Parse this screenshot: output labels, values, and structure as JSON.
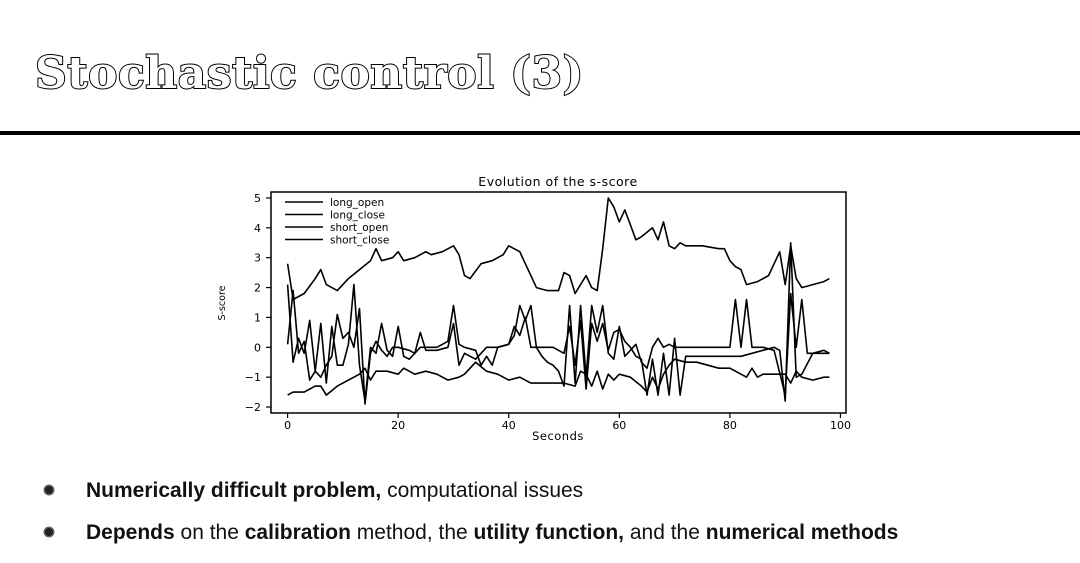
{
  "slide": {
    "title": "Stochastic control (3)"
  },
  "bullets": [
    {
      "parts": [
        {
          "text": "Numerically difficult problem,",
          "bold": true
        },
        {
          "text": " computational issues",
          "bold": false
        }
      ]
    },
    {
      "parts": [
        {
          "text": "Depends",
          "bold": true
        },
        {
          "text": " on the ",
          "bold": false
        },
        {
          "text": "calibration",
          "bold": true
        },
        {
          "text": " method, the ",
          "bold": false
        },
        {
          "text": "utility function,",
          "bold": true
        },
        {
          "text": " and the ",
          "bold": false
        },
        {
          "text": "numerical methods",
          "bold": true
        }
      ]
    }
  ],
  "chart_data": {
    "type": "line",
    "title": "Evolution of the s-score",
    "xlabel": "Seconds",
    "ylabel": "S-score",
    "xlim": [
      -3,
      101
    ],
    "ylim": [
      -2.2,
      5.2
    ],
    "xticks": [
      0,
      20,
      40,
      60,
      80,
      100
    ],
    "yticks": [
      -2,
      -1,
      0,
      1,
      2,
      3,
      4,
      5
    ],
    "grid": false,
    "legend_position": "top-left",
    "line_color": "#000000",
    "series": [
      {
        "name": "long_open",
        "points": [
          [
            0,
            2.8
          ],
          [
            1,
            1.6
          ],
          [
            3,
            1.8
          ],
          [
            5,
            2.3
          ],
          [
            6,
            2.6
          ],
          [
            7,
            2.1
          ],
          [
            9,
            1.9
          ],
          [
            11,
            2.3
          ],
          [
            13,
            2.6
          ],
          [
            15,
            2.9
          ],
          [
            16,
            3.3
          ],
          [
            17,
            2.9
          ],
          [
            19,
            3.0
          ],
          [
            20,
            3.2
          ],
          [
            21,
            2.9
          ],
          [
            23,
            3.0
          ],
          [
            25,
            3.2
          ],
          [
            26,
            3.1
          ],
          [
            28,
            3.2
          ],
          [
            30,
            3.4
          ],
          [
            31,
            3.1
          ],
          [
            32,
            2.4
          ],
          [
            33,
            2.3
          ],
          [
            35,
            2.8
          ],
          [
            37,
            2.9
          ],
          [
            39,
            3.1
          ],
          [
            40,
            3.4
          ],
          [
            42,
            3.2
          ],
          [
            43,
            2.8
          ],
          [
            44,
            2.4
          ],
          [
            45,
            2.0
          ],
          [
            47,
            1.9
          ],
          [
            49,
            1.9
          ],
          [
            50,
            2.5
          ],
          [
            51,
            2.4
          ],
          [
            52,
            1.8
          ],
          [
            54,
            2.4
          ],
          [
            55,
            2.0
          ],
          [
            56,
            1.9
          ],
          [
            57,
            3.3
          ],
          [
            58,
            5.0
          ],
          [
            59,
            4.7
          ],
          [
            60,
            4.2
          ],
          [
            61,
            4.6
          ],
          [
            62,
            4.1
          ],
          [
            63,
            3.6
          ],
          [
            64,
            3.7
          ],
          [
            66,
            4.0
          ],
          [
            67,
            3.6
          ],
          [
            68,
            4.2
          ],
          [
            69,
            3.4
          ],
          [
            70,
            3.3
          ],
          [
            71,
            3.5
          ],
          [
            72,
            3.4
          ],
          [
            75,
            3.4
          ],
          [
            78,
            3.3
          ],
          [
            79,
            3.3
          ],
          [
            80,
            2.9
          ],
          [
            81,
            2.7
          ],
          [
            82,
            2.6
          ],
          [
            83,
            2.1
          ],
          [
            85,
            2.2
          ],
          [
            87,
            2.4
          ],
          [
            89,
            3.2
          ],
          [
            90,
            2.1
          ],
          [
            91,
            3.4
          ],
          [
            92,
            2.3
          ],
          [
            93,
            2.0
          ],
          [
            95,
            2.1
          ],
          [
            97,
            2.2
          ],
          [
            98,
            2.3
          ]
        ]
      },
      {
        "name": "long_close",
        "points": [
          [
            0,
            0.1
          ],
          [
            1,
            1.9
          ],
          [
            2,
            -0.2
          ],
          [
            3,
            0.2
          ],
          [
            4,
            -1.1
          ],
          [
            5,
            -0.8
          ],
          [
            6,
            0.8
          ],
          [
            7,
            -1.2
          ],
          [
            8,
            0.7
          ],
          [
            9,
            -0.6
          ],
          [
            10,
            -0.6
          ],
          [
            11,
            0.1
          ],
          [
            12,
            2.1
          ],
          [
            13,
            -0.6
          ],
          [
            14,
            -1.8
          ],
          [
            15,
            0.0
          ],
          [
            16,
            -0.2
          ],
          [
            17,
            0.8
          ],
          [
            18,
            -0.1
          ],
          [
            19,
            -0.3
          ],
          [
            20,
            0.7
          ],
          [
            21,
            -0.3
          ],
          [
            22,
            -0.4
          ],
          [
            23,
            -0.2
          ],
          [
            24,
            0.0
          ],
          [
            25,
            0.0
          ],
          [
            27,
            0.0
          ],
          [
            28,
            0.1
          ],
          [
            29,
            0.2
          ],
          [
            30,
            1.4
          ],
          [
            31,
            0.1
          ],
          [
            32,
            0.0
          ],
          [
            34,
            -0.1
          ],
          [
            35,
            -0.6
          ],
          [
            36,
            -0.3
          ],
          [
            37,
            -0.6
          ],
          [
            38,
            0.0
          ],
          [
            40,
            0.1
          ],
          [
            41,
            0.4
          ],
          [
            42,
            1.4
          ],
          [
            43,
            0.9
          ],
          [
            44,
            1.4
          ],
          [
            45,
            0.0
          ],
          [
            46,
            -0.3
          ],
          [
            47,
            -0.5
          ],
          [
            48,
            -0.6
          ],
          [
            49,
            -0.8
          ],
          [
            50,
            -1.3
          ],
          [
            51,
            1.4
          ],
          [
            52,
            -1.2
          ],
          [
            53,
            1.4
          ],
          [
            54,
            -1.0
          ],
          [
            55,
            1.4
          ],
          [
            56,
            0.5
          ],
          [
            57,
            1.4
          ],
          [
            58,
            -0.2
          ],
          [
            59,
            -0.4
          ],
          [
            60,
            0.7
          ],
          [
            61,
            -0.3
          ],
          [
            62,
            -0.1
          ],
          [
            63,
            0.1
          ],
          [
            64,
            -0.5
          ],
          [
            65,
            -0.7
          ],
          [
            66,
            0.0
          ],
          [
            67,
            0.3
          ],
          [
            68,
            0.0
          ],
          [
            69,
            0.1
          ],
          [
            70,
            0.0
          ],
          [
            72,
            0.0
          ],
          [
            74,
            0.0
          ],
          [
            77,
            0.0
          ],
          [
            80,
            0.0
          ],
          [
            81,
            1.6
          ],
          [
            82,
            0.0
          ],
          [
            83,
            1.6
          ],
          [
            84,
            0.0
          ],
          [
            86,
            0.0
          ],
          [
            88,
            -0.1
          ],
          [
            90,
            -1.6
          ],
          [
            91,
            1.8
          ],
          [
            92,
            0.0
          ],
          [
            93,
            1.6
          ],
          [
            94,
            -0.2
          ],
          [
            96,
            -0.2
          ],
          [
            98,
            -0.2
          ]
        ]
      },
      {
        "name": "short_open",
        "points": [
          [
            0,
            -1.6
          ],
          [
            1,
            -1.5
          ],
          [
            3,
            -1.5
          ],
          [
            5,
            -1.3
          ],
          [
            6,
            -1.3
          ],
          [
            7,
            -1.6
          ],
          [
            9,
            -1.3
          ],
          [
            11,
            -1.1
          ],
          [
            13,
            -0.9
          ],
          [
            14,
            -0.7
          ],
          [
            15,
            -1.1
          ],
          [
            16,
            -0.8
          ],
          [
            18,
            -0.8
          ],
          [
            20,
            -0.9
          ],
          [
            21,
            -0.7
          ],
          [
            23,
            -0.9
          ],
          [
            25,
            -0.8
          ],
          [
            27,
            -0.9
          ],
          [
            29,
            -1.1
          ],
          [
            31,
            -1.0
          ],
          [
            32,
            -0.9
          ],
          [
            34,
            -0.5
          ],
          [
            36,
            -0.8
          ],
          [
            38,
            -0.9
          ],
          [
            40,
            -1.1
          ],
          [
            42,
            -1.0
          ],
          [
            44,
            -1.2
          ],
          [
            46,
            -1.2
          ],
          [
            48,
            -1.2
          ],
          [
            50,
            -1.2
          ],
          [
            52,
            -1.3
          ],
          [
            53,
            -0.8
          ],
          [
            54,
            -0.9
          ],
          [
            55,
            -1.3
          ],
          [
            56,
            -0.8
          ],
          [
            57,
            -1.4
          ],
          [
            58,
            -0.9
          ],
          [
            59,
            -1.1
          ],
          [
            60,
            -0.9
          ],
          [
            62,
            -1.0
          ],
          [
            64,
            -1.3
          ],
          [
            65,
            -1.5
          ],
          [
            66,
            -1.0
          ],
          [
            67,
            -1.4
          ],
          [
            68,
            -0.9
          ],
          [
            69,
            -0.6
          ],
          [
            70,
            -0.4
          ],
          [
            72,
            -0.5
          ],
          [
            74,
            -0.5
          ],
          [
            76,
            -0.6
          ],
          [
            78,
            -0.7
          ],
          [
            80,
            -0.7
          ],
          [
            82,
            -0.9
          ],
          [
            83,
            -1.0
          ],
          [
            84,
            -0.7
          ],
          [
            85,
            -1.0
          ],
          [
            86,
            -0.9
          ],
          [
            88,
            -0.9
          ],
          [
            90,
            -0.9
          ],
          [
            91,
            -1.2
          ],
          [
            92,
            -0.8
          ],
          [
            93,
            -1.0
          ],
          [
            95,
            -1.1
          ],
          [
            97,
            -1.0
          ],
          [
            98,
            -1.0
          ]
        ]
      },
      {
        "name": "short_close",
        "points": [
          [
            0,
            2.1
          ],
          [
            1,
            -0.5
          ],
          [
            2,
            0.3
          ],
          [
            3,
            -0.2
          ],
          [
            4,
            0.9
          ],
          [
            5,
            -0.8
          ],
          [
            6,
            -1.0
          ],
          [
            7,
            -0.6
          ],
          [
            8,
            -0.3
          ],
          [
            9,
            1.1
          ],
          [
            10,
            0.3
          ],
          [
            11,
            0.5
          ],
          [
            12,
            0.0
          ],
          [
            13,
            1.3
          ],
          [
            14,
            -1.9
          ],
          [
            15,
            -0.2
          ],
          [
            16,
            0.2
          ],
          [
            17,
            -0.1
          ],
          [
            18,
            -0.3
          ],
          [
            19,
            0.0
          ],
          [
            20,
            0.0
          ],
          [
            22,
            -0.1
          ],
          [
            23,
            -0.2
          ],
          [
            24,
            0.5
          ],
          [
            25,
            -0.1
          ],
          [
            27,
            -0.1
          ],
          [
            29,
            0.0
          ],
          [
            30,
            0.8
          ],
          [
            31,
            -0.6
          ],
          [
            32,
            -0.2
          ],
          [
            34,
            -0.4
          ],
          [
            36,
            0.0
          ],
          [
            38,
            0.0
          ],
          [
            40,
            0.1
          ],
          [
            41,
            0.7
          ],
          [
            42,
            0.4
          ],
          [
            43,
            1.0
          ],
          [
            44,
            0.0
          ],
          [
            46,
            0.0
          ],
          [
            48,
            0.0
          ],
          [
            50,
            -0.2
          ],
          [
            51,
            0.7
          ],
          [
            52,
            -0.6
          ],
          [
            53,
            0.9
          ],
          [
            54,
            -1.4
          ],
          [
            55,
            0.8
          ],
          [
            56,
            0.2
          ],
          [
            57,
            0.8
          ],
          [
            58,
            -0.1
          ],
          [
            59,
            0.5
          ],
          [
            60,
            0.6
          ],
          [
            61,
            0.2
          ],
          [
            62,
            0.0
          ],
          [
            63,
            -0.3
          ],
          [
            64,
            -0.4
          ],
          [
            65,
            -1.6
          ],
          [
            66,
            -0.4
          ],
          [
            67,
            -1.6
          ],
          [
            68,
            -0.2
          ],
          [
            69,
            -1.6
          ],
          [
            70,
            0.3
          ],
          [
            71,
            -1.6
          ],
          [
            72,
            -0.3
          ],
          [
            74,
            -0.3
          ],
          [
            76,
            -0.3
          ],
          [
            78,
            -0.3
          ],
          [
            80,
            -0.3
          ],
          [
            82,
            -0.3
          ],
          [
            84,
            -0.2
          ],
          [
            86,
            -0.1
          ],
          [
            88,
            0.0
          ],
          [
            89,
            -0.1
          ],
          [
            90,
            -1.8
          ],
          [
            91,
            3.5
          ],
          [
            92,
            -1.0
          ],
          [
            93,
            -0.9
          ],
          [
            95,
            -0.2
          ],
          [
            97,
            -0.1
          ],
          [
            98,
            -0.2
          ]
        ]
      }
    ]
  }
}
